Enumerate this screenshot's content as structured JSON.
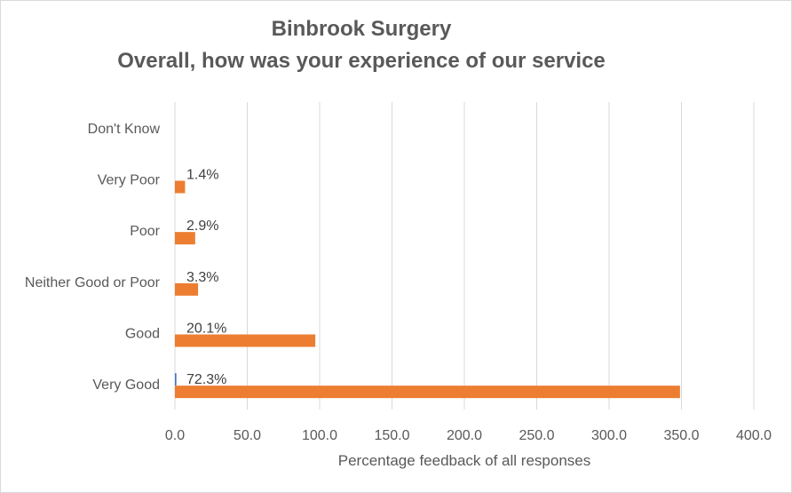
{
  "chart_data": {
    "type": "bar",
    "orientation": "horizontal",
    "title": [
      "Binbrook Surgery",
      "Overall, how was your experience of our service"
    ],
    "xlabel": "Percentage feedback of all responses",
    "ylabel": "",
    "xlim": [
      0,
      400
    ],
    "xticks": [
      "0.0",
      "50.0",
      "100.0",
      "150.0",
      "200.0",
      "250.0",
      "300.0",
      "350.0",
      "400.0"
    ],
    "grid": true,
    "categories": [
      "Don't Know",
      "Very Poor",
      "Poor",
      "Neither Good or Poor",
      "Good",
      "Very Good"
    ],
    "series": [
      {
        "color": "#4472c4",
        "values": [
          0,
          0,
          0,
          0,
          0,
          1
        ]
      },
      {
        "color": "#ed7d31",
        "values": [
          0,
          7,
          14,
          16,
          97,
          349
        ],
        "labels": [
          "",
          "1.4%",
          "2.9%",
          "3.3%",
          "20.1%",
          "72.3%"
        ]
      }
    ]
  }
}
